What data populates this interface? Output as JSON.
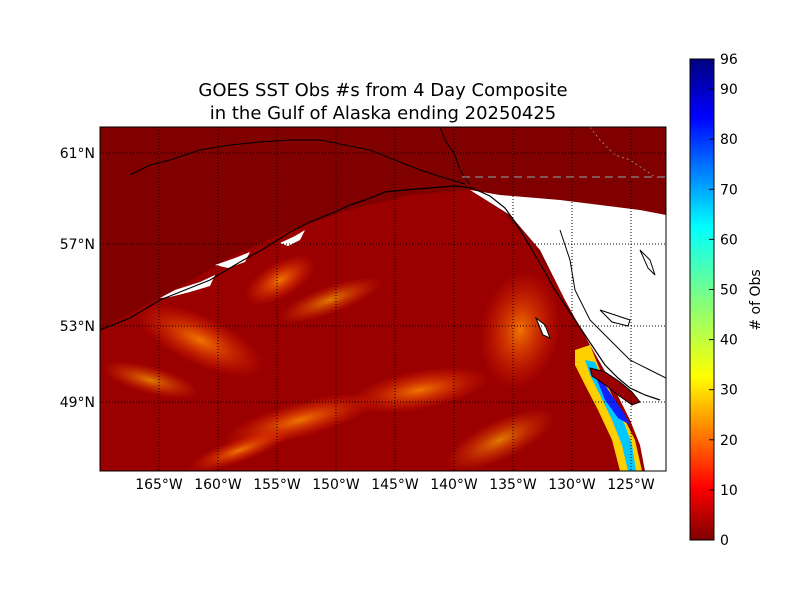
{
  "title_line1": "GOES SST Obs #s from 4 Day Composite",
  "title_line2": "in the Gulf of Alaska ending 20250425",
  "lat_labels": [
    "61°N",
    "57°N",
    "53°N",
    "49°N"
  ],
  "lon_labels": [
    "165°W",
    "160°W",
    "155°W",
    "150°W",
    "145°W",
    "140°W",
    "135°W",
    "130°W",
    "125°W"
  ],
  "colorbar": {
    "label": "# of Obs",
    "tick_labels": [
      "0",
      "10",
      "20",
      "30",
      "40",
      "50",
      "60",
      "70",
      "80",
      "90",
      "96"
    ],
    "min": 0,
    "max": 96,
    "colormap": "jet"
  },
  "colors": {
    "land_mask": "#800000",
    "no_data": "#ffffff",
    "low_obs": "#990000",
    "mid_obs": "#ff8000",
    "high_obs": "#0000ff"
  }
}
